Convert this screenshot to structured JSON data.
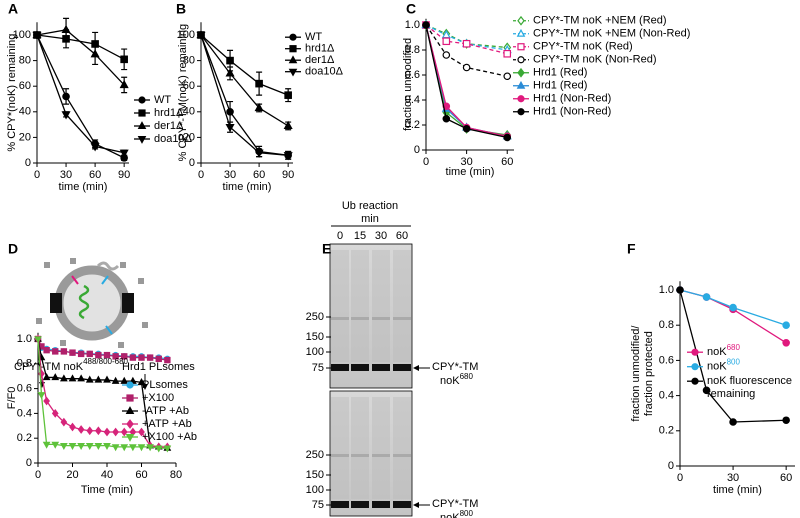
{
  "chart_data": [
    {
      "type": "line",
      "panel": "A",
      "y_label": "% CPY*(noK) remaining",
      "x_label": "time (min)",
      "xlim": [
        0,
        95
      ],
      "ylim": [
        0,
        110
      ],
      "xticks": [
        0,
        30,
        60,
        90
      ],
      "yticks": [
        0,
        20,
        40,
        60,
        80,
        100
      ],
      "legend": "lower right",
      "x": [
        0,
        30,
        60,
        90
      ],
      "series": [
        {
          "name": "WT",
          "color": "#000000",
          "marker": "circle",
          "filled": true,
          "dash": false,
          "values": [
            100,
            52,
            15,
            4
          ],
          "errors": [
            0,
            6,
            3,
            2
          ]
        },
        {
          "name": "hrd1Δ",
          "color": "#000000",
          "marker": "square",
          "filled": true,
          "dash": false,
          "values": [
            100,
            97,
            93,
            81
          ],
          "errors": [
            0,
            7,
            9,
            8
          ]
        },
        {
          "name": "der1Δ",
          "color": "#000000",
          "marker": "triangle",
          "filled": true,
          "dash": false,
          "values": [
            100,
            104,
            85,
            61
          ],
          "errors": [
            0,
            9,
            8,
            6
          ]
        },
        {
          "name": "doa10Δ",
          "color": "#000000",
          "marker": "triangle-down",
          "filled": true,
          "dash": false,
          "values": [
            100,
            38,
            13,
            8
          ],
          "errors": [
            0,
            2,
            2,
            2
          ]
        }
      ]
    },
    {
      "type": "line",
      "panel": "B",
      "y_label": "% CPY*-TM(noK) remaining",
      "x_label": "time (min)",
      "xlim": [
        0,
        95
      ],
      "ylim": [
        0,
        110
      ],
      "xticks": [
        0,
        30,
        60,
        90
      ],
      "yticks": [
        0,
        20,
        40,
        60,
        80,
        100
      ],
      "legend": "upper right",
      "x": [
        0,
        30,
        60,
        90
      ],
      "series": [
        {
          "name": "WT",
          "color": "#000000",
          "marker": "circle",
          "filled": true,
          "dash": false,
          "values": [
            100,
            40,
            9,
            6
          ],
          "errors": [
            0,
            8,
            4,
            3
          ]
        },
        {
          "name": "hrd1Δ",
          "color": "#000000",
          "marker": "square",
          "filled": true,
          "dash": false,
          "values": [
            100,
            80,
            62,
            53
          ],
          "errors": [
            0,
            8,
            9,
            5
          ]
        },
        {
          "name": "der1Δ",
          "color": "#000000",
          "marker": "triangle",
          "filled": true,
          "dash": false,
          "values": [
            100,
            70,
            43,
            29
          ],
          "errors": [
            0,
            5,
            3,
            3
          ]
        },
        {
          "name": "doa10Δ",
          "color": "#000000",
          "marker": "triangle-down",
          "filled": true,
          "dash": false,
          "values": [
            100,
            28,
            8,
            6
          ],
          "errors": [
            0,
            4,
            3,
            3
          ]
        }
      ]
    },
    {
      "type": "line",
      "panel": "C",
      "y_label": "fraction unmodified",
      "x_label": "time (min)",
      "xlim": [
        0,
        65
      ],
      "ylim": [
        0,
        1.05
      ],
      "xticks": [
        0,
        30,
        60
      ],
      "yticks": [
        0,
        0.2,
        0.4,
        0.6,
        0.8,
        {
          "value": 1,
          "label": "1.0"
        }
      ],
      "legend": "upper right",
      "x": [
        0,
        15,
        30,
        60
      ],
      "series": [
        {
          "name": "CPY*-TM noK +NEM (Red)",
          "color": "#3aa935",
          "marker": "diamond",
          "filled": false,
          "dash": true,
          "values": [
            1,
            0.93,
            0.85,
            0.82
          ]
        },
        {
          "name": "CPY*-TM noK +NEM (Non-Red)",
          "color": "#29abe2",
          "marker": "triangle",
          "filled": false,
          "dash": true,
          "values": [
            1,
            0.92,
            0.85,
            0.8
          ]
        },
        {
          "name": "CPY*-TM noK (Red)",
          "color": "#e0197d",
          "marker": "square",
          "filled": false,
          "dash": true,
          "values": [
            1,
            0.87,
            0.85,
            0.77
          ]
        },
        {
          "name": "CPY*-TM noK (Non-Red)",
          "color": "#000000",
          "marker": "circle",
          "filled": false,
          "dash": true,
          "values": [
            1,
            0.76,
            0.66,
            0.59
          ]
        },
        {
          "name": "Hrd1 (Red)",
          "color": "#3aa935",
          "marker": "diamond",
          "filled": true,
          "dash": false,
          "values": [
            1,
            0.3,
            0.17,
            0.12
          ]
        },
        {
          "name": "Hrd1 (Red)",
          "color": "#2b8cd6",
          "marker": "triangle",
          "filled": true,
          "dash": false,
          "values": [
            1,
            0.33,
            0.18,
            0.11
          ]
        },
        {
          "name": "Hrd1 (Non-Red)",
          "color": "#e0197d",
          "marker": "circle",
          "filled": true,
          "dash": false,
          "values": [
            1,
            0.35,
            0.18,
            0.11
          ]
        },
        {
          "name": "Hrd1 (Non-Red)",
          "color": "#000000",
          "marker": "circle",
          "filled": true,
          "dash": false,
          "values": [
            1,
            0.25,
            0.17,
            0.1
          ]
        }
      ]
    },
    {
      "type": "line",
      "panel": "D",
      "y_label": "F/F0",
      "x_label": "Time (min)",
      "xlim": [
        0,
        80
      ],
      "ylim": [
        0,
        1.05
      ],
      "xticks": [
        0,
        20,
        40,
        60,
        80
      ],
      "yticks": [
        0,
        0.2,
        0.4,
        0.6,
        0.8,
        {
          "value": 1,
          "label": "1.0"
        }
      ],
      "legend": "lower right",
      "annotations": [
        {
          "text": "CPY*-TM noK",
          "sup": "488/800-680"
        },
        {
          "text": "Hrd1 PLsomes"
        }
      ],
      "x": [
        0,
        2,
        5,
        10,
        15,
        20,
        25,
        30,
        35,
        40,
        45,
        50,
        55,
        60,
        65,
        70,
        75
      ],
      "series": [
        {
          "name": "PLsomes",
          "color": "#29abe2",
          "marker": "circle",
          "filled": true,
          "dash": false,
          "values": [
            1,
            0.93,
            0.92,
            0.91,
            0.9,
            0.89,
            0.89,
            0.88,
            0.88,
            0.87,
            0.87,
            0.86,
            0.86,
            0.86,
            0.85,
            0.85,
            0.84
          ]
        },
        {
          "name": "+X100",
          "color": "#b0206a",
          "marker": "square",
          "filled": true,
          "dash": false,
          "values": [
            1,
            0.94,
            0.91,
            0.9,
            0.9,
            0.89,
            0.88,
            0.88,
            0.87,
            0.87,
            0.86,
            0.86,
            0.85,
            0.85,
            0.85,
            0.84,
            0.83
          ]
        },
        {
          "name": "-ATP +Ab",
          "color": "#000000",
          "marker": "triangle",
          "filled": true,
          "dash": false,
          "values": [
            1,
            0.85,
            0.69,
            0.69,
            0.68,
            0.68,
            0.68,
            0.67,
            0.67,
            0.67,
            0.66,
            0.66,
            0.66,
            0.65,
            0.14,
            0.13,
            0.12
          ]
        },
        {
          "name": "+ATP +Ab",
          "color": "#d6247a",
          "marker": "diamond",
          "filled": true,
          "dash": false,
          "values": [
            1,
            0.72,
            0.5,
            0.4,
            0.33,
            0.29,
            0.27,
            0.26,
            0.26,
            0.25,
            0.25,
            0.25,
            0.25,
            0.25,
            0.14,
            0.13,
            0.13
          ]
        },
        {
          "name": "+X100 +Ab",
          "color": "#5ec23a",
          "marker": "triangle-down",
          "filled": true,
          "dash": false,
          "values": [
            1,
            0.55,
            0.15,
            0.15,
            0.14,
            0.14,
            0.14,
            0.14,
            0.14,
            0.14,
            0.13,
            0.13,
            0.13,
            0.13,
            0.13,
            0.12,
            0.12
          ]
        }
      ]
    },
    {
      "type": "line",
      "panel": "F",
      "y_label": [
        "fraction unmodified/",
        "fraction protected"
      ],
      "x_label": "time (min)",
      "xlim": [
        0,
        65
      ],
      "ylim": [
        0,
        1.05
      ],
      "xticks": [
        0,
        30,
        60
      ],
      "yticks": [
        0,
        0.2,
        0.4,
        0.6,
        0.8,
        {
          "value": 1,
          "label": "1.0"
        }
      ],
      "legend": "upper right",
      "x": [
        0,
        15,
        30,
        60
      ],
      "series": [
        {
          "name": "noK",
          "name_sup": "680",
          "color": "#e0197d",
          "marker": "circle",
          "filled": true,
          "dash": false,
          "values": [
            1,
            0.96,
            0.89,
            0.7
          ]
        },
        {
          "name": "noK",
          "name_sup": "800",
          "color": "#29abe2",
          "marker": "circle",
          "filled": true,
          "dash": false,
          "values": [
            1,
            0.96,
            0.9,
            0.8
          ]
        },
        {
          "name": "noK fluorescence remaining",
          "color": "#000000",
          "marker": "circle",
          "filled": true,
          "dash": false,
          "values": [
            1,
            0.43,
            0.25,
            0.26
          ]
        }
      ]
    }
  ],
  "gel": {
    "panel": "E",
    "title": "Ub reaction",
    "unit": "min",
    "lanes": [
      "0",
      "15",
      "30",
      "60"
    ],
    "blots": [
      {
        "markers": [
          250,
          150,
          100,
          75
        ],
        "label": "CPY*-TM",
        "label_sub": "noK",
        "label_sup": "680",
        "color": "#e0197d"
      },
      {
        "markers": [
          250,
          150,
          100,
          75
        ],
        "label": "CPY*-TM",
        "label_sub": "noK",
        "label_sup": "800",
        "color": "#29abe2"
      }
    ]
  }
}
